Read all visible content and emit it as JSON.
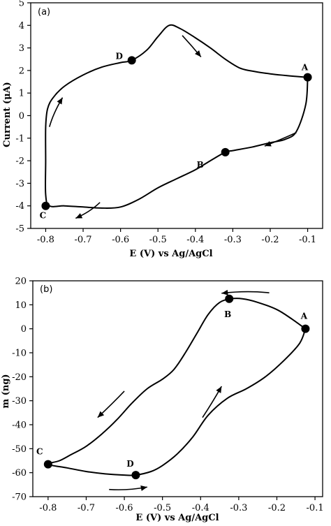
{
  "chart_data": [
    {
      "type": "line",
      "panel_label": "(a)",
      "xlabel": "E (V) vs  Ag/AgCl",
      "ylabel": "Current (μA)",
      "xlim": [
        -0.84,
        -0.06
      ],
      "ylim": [
        -5,
        5
      ],
      "xticks": [
        -0.8,
        -0.7,
        -0.6,
        -0.5,
        -0.4,
        -0.3,
        -0.2,
        -0.1
      ],
      "xtick_labels": [
        "-0.8",
        "-0.7",
        "-0.6",
        "-0.5",
        "-0.4",
        "-0.3",
        "-0.2",
        "-0.1"
      ],
      "yticks": [
        -5,
        -4,
        -3,
        -2,
        -1,
        0,
        1,
        2,
        3,
        4,
        5
      ],
      "ytick_labels": [
        "-5",
        "-4",
        "-3",
        "-2",
        "-1",
        "0",
        "1",
        "2",
        "3",
        "4",
        "5"
      ],
      "series": [
        {
          "x": [
            -0.1,
            -0.105,
            -0.13,
            -0.16,
            -0.2,
            -0.25,
            -0.3,
            -0.32,
            -0.36,
            -0.4,
            -0.45,
            -0.5,
            -0.55,
            -0.6,
            -0.65,
            -0.7,
            -0.75,
            -0.79,
            -0.8,
            -0.8,
            -0.8,
            -0.795,
            -0.78,
            -0.75,
            -0.7,
            -0.65,
            -0.6,
            -0.57,
            -0.53,
            -0.5,
            -0.47,
            -0.44,
            -0.4,
            -0.36,
            -0.32,
            -0.28,
            -0.24,
            -0.2,
            -0.16,
            -0.12,
            -0.1
          ],
          "y": [
            1.7,
            0.5,
            -0.7,
            -1.05,
            -1.2,
            -1.4,
            -1.55,
            -1.62,
            -2.0,
            -2.4,
            -2.8,
            -3.2,
            -3.7,
            -4.05,
            -4.1,
            -4.05,
            -4.0,
            -4.0,
            -3.5,
            -2.0,
            -0.5,
            0.3,
            0.8,
            1.3,
            1.8,
            2.15,
            2.35,
            2.45,
            2.9,
            3.5,
            4.0,
            3.85,
            3.45,
            3.0,
            2.5,
            2.1,
            1.95,
            1.85,
            1.78,
            1.72,
            1.7
          ]
        }
      ],
      "points": [
        {
          "label": "A",
          "x": -0.1,
          "y": 1.7
        },
        {
          "label": "B",
          "x": -0.32,
          "y": -1.62
        },
        {
          "label": "C",
          "x": -0.8,
          "y": -4.0
        },
        {
          "label": "D",
          "x": -0.57,
          "y": 2.45
        }
      ]
    },
    {
      "type": "line",
      "panel_label": "(b)",
      "xlabel": "E (V) vs  Ag/AgCl",
      "ylabel": "m (ng)",
      "xlim": [
        -0.84,
        -0.08
      ],
      "ylim": [
        -70,
        20
      ],
      "xticks": [
        -0.8,
        -0.7,
        -0.6,
        -0.5,
        -0.4,
        -0.3,
        -0.2,
        -0.1
      ],
      "xtick_labels": [
        "-0.8",
        "-0.7",
        "-0.6",
        "-0.5",
        "-0.4",
        "-0.3",
        "-0.2",
        "-0.1"
      ],
      "yticks": [
        -70,
        -60,
        -50,
        -40,
        -30,
        -20,
        -10,
        0,
        10,
        20
      ],
      "ytick_labels": [
        "-70",
        "-60",
        "-50",
        "-40",
        "-30",
        "-20",
        "-10",
        "0",
        "10",
        "20"
      ],
      "series": [
        {
          "x": [
            -0.125,
            -0.16,
            -0.2,
            -0.25,
            -0.29,
            -0.32,
            -0.35,
            -0.38,
            -0.41,
            -0.44,
            -0.47,
            -0.5,
            -0.54,
            -0.58,
            -0.62,
            -0.66,
            -0.7,
            -0.74,
            -0.77,
            -0.8,
            -0.75,
            -0.7,
            -0.65,
            -0.6,
            -0.57,
            -0.53,
            -0.5,
            -0.46,
            -0.42,
            -0.38,
            -0.33,
            -0.28,
            -0.23,
            -0.18,
            -0.14,
            -0.125
          ],
          "y": [
            0,
            4,
            8,
            11,
            12.5,
            12.5,
            11,
            6,
            -2,
            -10,
            -17,
            -21,
            -25,
            -31,
            -38,
            -44,
            -49,
            -52.5,
            -55,
            -56.5,
            -58,
            -59.5,
            -60.5,
            -61,
            -61,
            -59.5,
            -57,
            -52,
            -45,
            -36,
            -29,
            -25,
            -20,
            -13,
            -6,
            0
          ]
        }
      ],
      "points": [
        {
          "label": "A",
          "x": -0.125,
          "y": 0
        },
        {
          "label": "B",
          "x": -0.325,
          "y": 12.5
        },
        {
          "label": "C",
          "x": -0.8,
          "y": -56.5
        },
        {
          "label": "D",
          "x": -0.57,
          "y": -61
        }
      ]
    }
  ]
}
